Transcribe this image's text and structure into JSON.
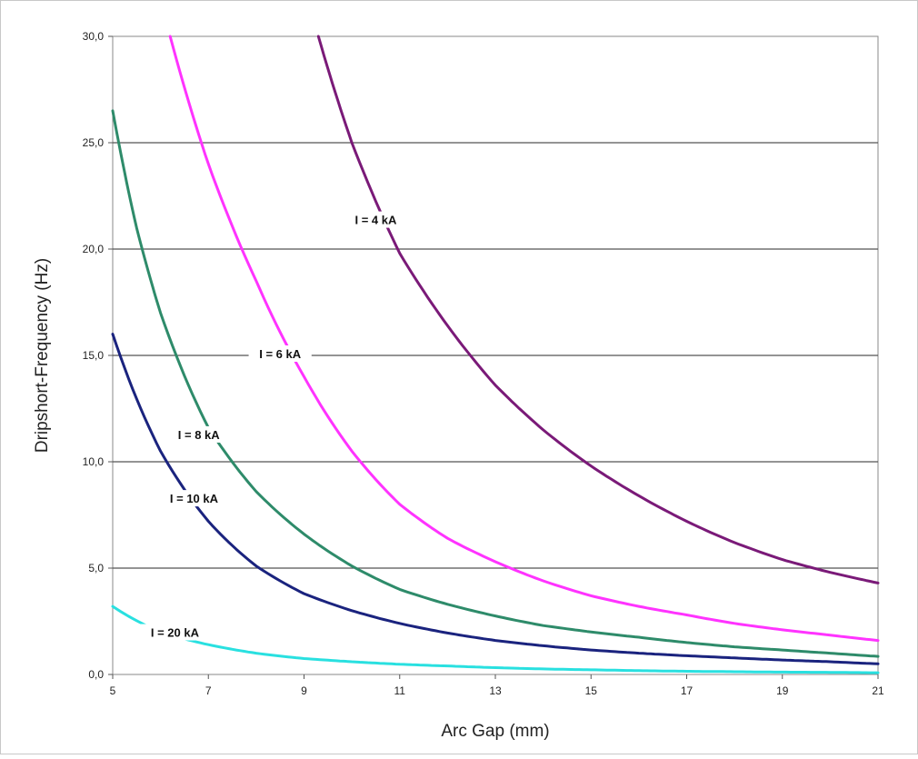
{
  "chart_data": {
    "type": "line",
    "title": "",
    "xlabel": "Arc Gap (mm)",
    "ylabel": "Dripshort-Frequency (Hz)",
    "xlim": [
      5,
      21
    ],
    "ylim": [
      0,
      30
    ],
    "x_ticks": [
      "5",
      "7",
      "9",
      "11",
      "13",
      "15",
      "17",
      "19",
      "21"
    ],
    "y_ticks": [
      "0,0",
      "5,0",
      "10,0",
      "15,0",
      "20,0",
      "25,0",
      "30,0"
    ],
    "grid": "horizontal",
    "series": [
      {
        "name": "I = 4 kA",
        "color": "#7a1a78",
        "x": [
          9.3,
          10,
          11,
          12,
          13,
          14,
          15,
          16,
          17,
          18,
          19,
          20,
          21
        ],
        "y": [
          30.0,
          25.0,
          19.8,
          16.4,
          13.6,
          11.5,
          9.8,
          8.4,
          7.2,
          6.2,
          5.4,
          4.8,
          4.3
        ]
      },
      {
        "name": "I = 6 kA",
        "color": "#ff33ff",
        "x": [
          6.2,
          7,
          8,
          9,
          10,
          11,
          12,
          13,
          14,
          15,
          16,
          17,
          18,
          19,
          20,
          21
        ],
        "y": [
          30.0,
          24.0,
          18.5,
          14.0,
          10.5,
          8.0,
          6.4,
          5.3,
          4.4,
          3.7,
          3.2,
          2.8,
          2.4,
          2.1,
          1.85,
          1.6
        ]
      },
      {
        "name": "I = 8 kA",
        "color": "#2e8b6a",
        "x": [
          5,
          5.5,
          6,
          7,
          8,
          9,
          10,
          11,
          12,
          13,
          14,
          15,
          16,
          17,
          18,
          19,
          20,
          21
        ],
        "y": [
          26.5,
          21.0,
          17.0,
          11.6,
          8.6,
          6.6,
          5.1,
          4.0,
          3.3,
          2.75,
          2.3,
          2.0,
          1.75,
          1.5,
          1.3,
          1.15,
          1.0,
          0.85
        ]
      },
      {
        "name": "I = 10  kA",
        "color": "#1a237e",
        "x": [
          5,
          6,
          7,
          8,
          9,
          10,
          11,
          12,
          13,
          14,
          15,
          16,
          17,
          18,
          19,
          20,
          21
        ],
        "y": [
          16.0,
          10.5,
          7.2,
          5.1,
          3.8,
          3.0,
          2.4,
          1.95,
          1.6,
          1.35,
          1.15,
          1.0,
          0.88,
          0.78,
          0.68,
          0.6,
          0.5
        ]
      },
      {
        "name": "I = 20  kA",
        "color": "#29e0e0",
        "x": [
          5,
          6,
          7,
          8,
          9,
          10,
          11,
          12,
          13,
          14,
          15,
          16,
          17,
          18,
          19,
          20,
          21
        ],
        "y": [
          3.2,
          2.0,
          1.4,
          1.0,
          0.75,
          0.6,
          0.48,
          0.4,
          0.32,
          0.26,
          0.22,
          0.18,
          0.15,
          0.13,
          0.11,
          0.1,
          0.08
        ]
      }
    ],
    "annotations": [
      {
        "text": "I = 4 kA",
        "x": 10.5,
        "y": 21.3
      },
      {
        "text": "I = 6 kA",
        "x": 8.5,
        "y": 15.0
      },
      {
        "text": "I = 8 kA",
        "x": 6.8,
        "y": 11.2
      },
      {
        "text": "I = 10  kA",
        "x": 6.7,
        "y": 8.2
      },
      {
        "text": "I = 20  kA",
        "x": 6.3,
        "y": 1.9
      }
    ]
  }
}
